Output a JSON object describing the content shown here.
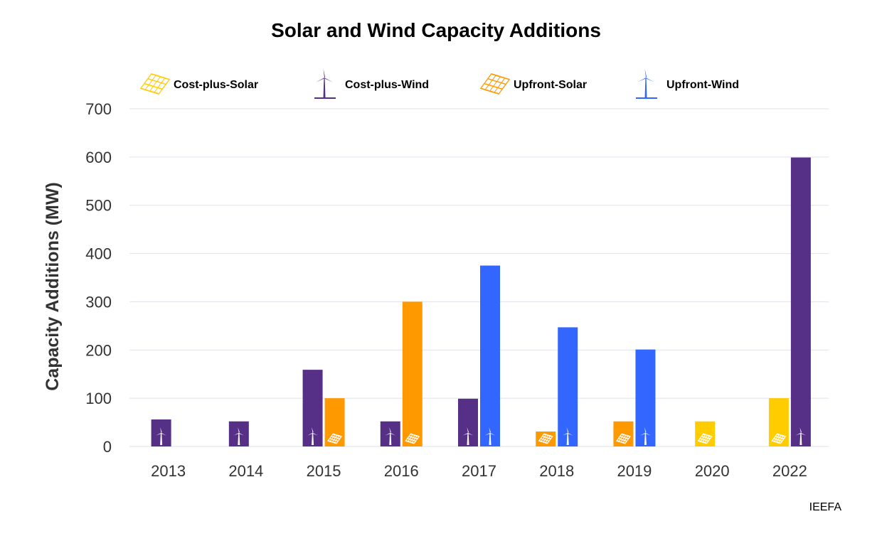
{
  "chart_data": {
    "type": "bar",
    "title": "Solar and Wind Capacity Additions",
    "xlabel": "",
    "ylabel": "Capacity Additions (MW)",
    "ylim": [
      0,
      700
    ],
    "yticks": [
      0,
      100,
      200,
      300,
      400,
      500,
      600,
      700
    ],
    "grid": true,
    "legend_placement": "top",
    "categories": [
      "2013",
      "2014",
      "2015",
      "2016",
      "2017",
      "2018",
      "2019",
      "2020",
      "2022"
    ],
    "series": [
      {
        "name": "Cost-plus-Solar",
        "color": "#FFCC00",
        "icon": "solar-panel-icon",
        "values": [
          null,
          null,
          null,
          null,
          null,
          null,
          null,
          52,
          100
        ]
      },
      {
        "name": "Cost-plus-Wind",
        "color": "#563087",
        "icon": "wind-turbine-icon",
        "values": [
          56,
          52,
          159,
          52,
          99,
          null,
          null,
          null,
          599
        ]
      },
      {
        "name": "Upfront-Solar",
        "color": "#FF9900",
        "icon": "solar-panel-icon",
        "values": [
          null,
          null,
          100,
          300,
          null,
          31,
          52,
          null,
          null
        ]
      },
      {
        "name": "Upfront-Wind",
        "color": "#3366FF",
        "icon": "wind-turbine-icon",
        "values": [
          null,
          null,
          null,
          null,
          375,
          247,
          201,
          null,
          null
        ]
      }
    ],
    "source": "IEEFA"
  }
}
